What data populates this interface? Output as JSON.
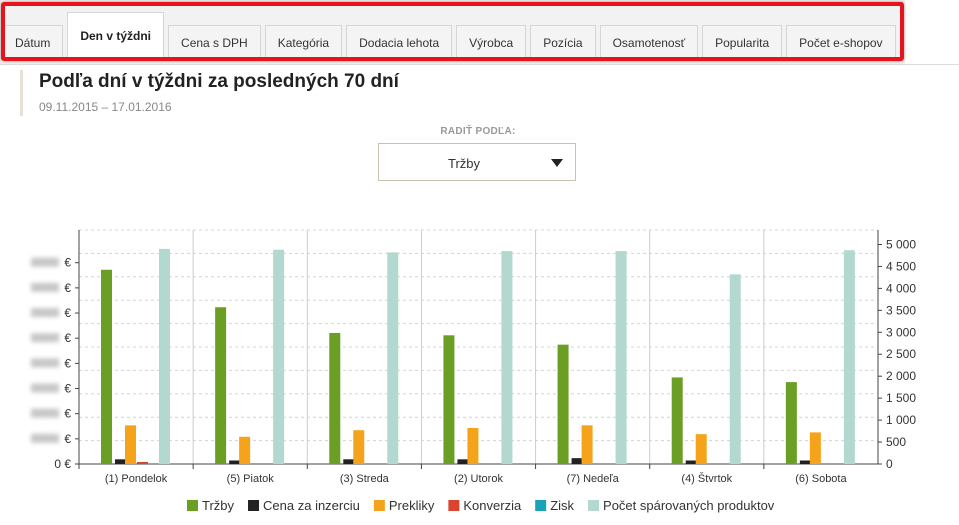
{
  "tabs": [
    {
      "label": "Dátum",
      "active": false
    },
    {
      "label": "Den v týždni",
      "active": true
    },
    {
      "label": "Cena s DPH",
      "active": false
    },
    {
      "label": "Kategória",
      "active": false
    },
    {
      "label": "Dodacia lehota",
      "active": false
    },
    {
      "label": "Výrobca",
      "active": false
    },
    {
      "label": "Pozícia",
      "active": false
    },
    {
      "label": "Osamotenosť",
      "active": false
    },
    {
      "label": "Popularita",
      "active": false
    },
    {
      "label": "Počet e-shopov",
      "active": false
    }
  ],
  "page_title": "Podľa dní v týždni za posledných 70 dní",
  "date_range": "09.11.2015 – 17.01.2016",
  "sort": {
    "label": "RADIŤ PODĽA:",
    "value": "Tržby"
  },
  "colors": {
    "highlight": "#e8141b",
    "grid": "#d0d0d0"
  },
  "chart_data": {
    "type": "bar",
    "categories": [
      "(1) Pondelok",
      "(5) Piatok",
      "(3) Streda",
      "(2) Utorok",
      "(7) Nedeľa",
      "(4) Štvrtok",
      "(6) Sobota"
    ],
    "left_axis": {
      "unit": "€",
      "ticks": [
        "0 €",
        "€",
        "€",
        "€",
        "€",
        "€",
        "€",
        "€",
        "€"
      ],
      "values_blurred": true
    },
    "right_axis": {
      "ylim": [
        0,
        5000
      ],
      "ticks": [
        "0",
        "500",
        "1 000",
        "1 500",
        "2 000",
        "2 500",
        "3 000",
        "3 500",
        "4 000",
        "4 500",
        "5 000"
      ]
    },
    "series": [
      {
        "name": "Tržby",
        "color": "#6b9e24",
        "axis": "left",
        "values": [
          0.83,
          0.67,
          0.56,
          0.55,
          0.51,
          0.37,
          0.35
        ]
      },
      {
        "name": "Cena za inzerciu",
        "color": "#222222",
        "axis": "left",
        "values": [
          0.02,
          0.015,
          0.02,
          0.02,
          0.025,
          0.015,
          0.015
        ]
      },
      {
        "name": "Prekliky",
        "color": "#f5a31a",
        "axis": "right",
        "values": [
          880,
          620,
          770,
          820,
          880,
          680,
          720
        ]
      },
      {
        "name": "Konverzia",
        "color": "#d9452e",
        "axis": "left",
        "values": [
          0.005,
          0,
          0,
          0,
          0,
          0,
          0
        ]
      },
      {
        "name": "Zisk",
        "color": "#1aa3b8",
        "axis": "left",
        "values": [
          0,
          0,
          0,
          0,
          0,
          0,
          0
        ]
      },
      {
        "name": "Počet spárovaných produktov",
        "color": "#b2d8cf",
        "axis": "right",
        "values": [
          4900,
          4880,
          4820,
          4850,
          4850,
          4320,
          4870
        ]
      }
    ],
    "grid": true,
    "legend": "bottom"
  }
}
